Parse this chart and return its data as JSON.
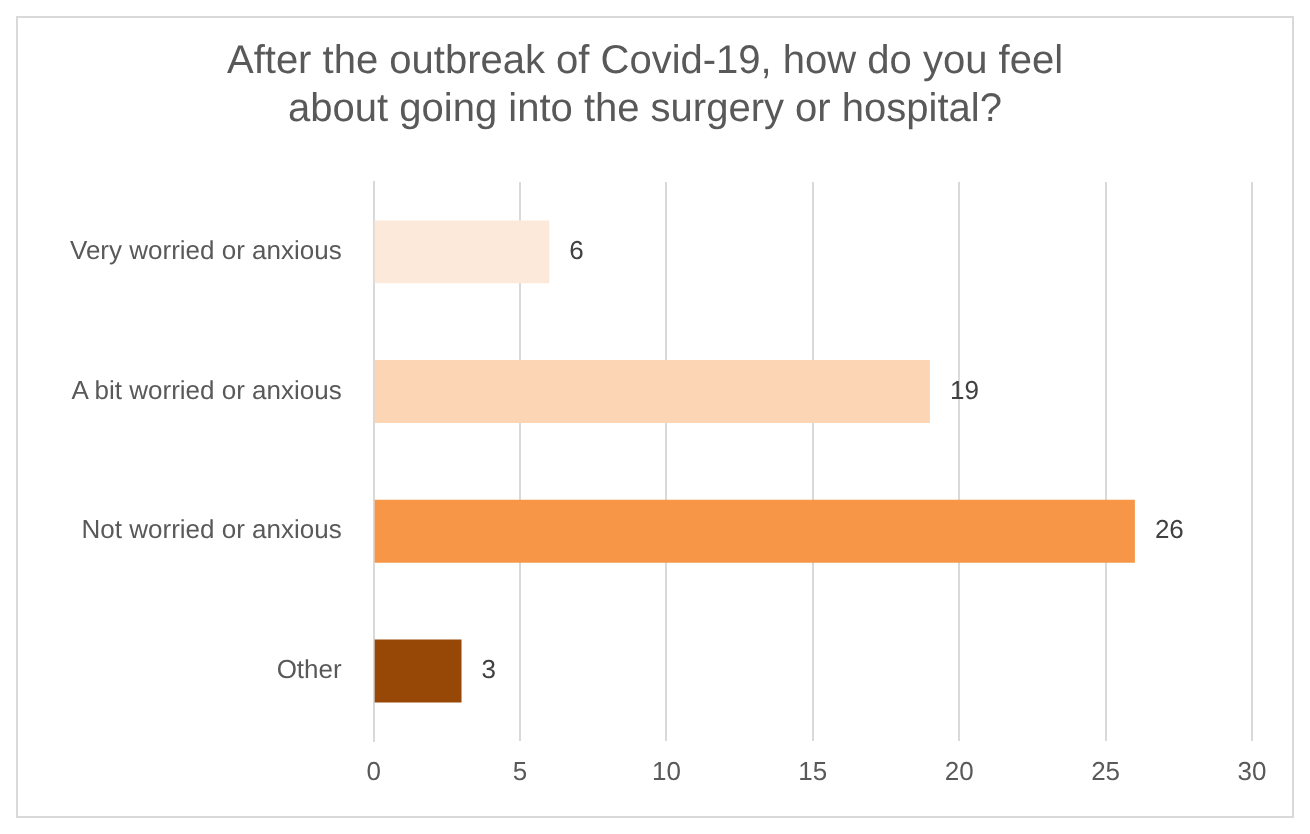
{
  "chart_data": {
    "type": "bar",
    "orientation": "horizontal",
    "title": "After the outbreak of Covid-19, how do you feel about going into the surgery or hospital?",
    "categories": [
      "Very worried or anxious",
      "A bit worried or anxious",
      "Not worried or anxious",
      "Other"
    ],
    "values": [
      6,
      19,
      26,
      3
    ],
    "colors": [
      "#fde9d9",
      "#fcd5b4",
      "#f79646",
      "#974706"
    ],
    "xlim": [
      0,
      30
    ],
    "xticks": [
      0,
      5,
      10,
      15,
      20,
      25,
      30
    ],
    "grid": "x",
    "data_labels": true,
    "legend": false
  }
}
